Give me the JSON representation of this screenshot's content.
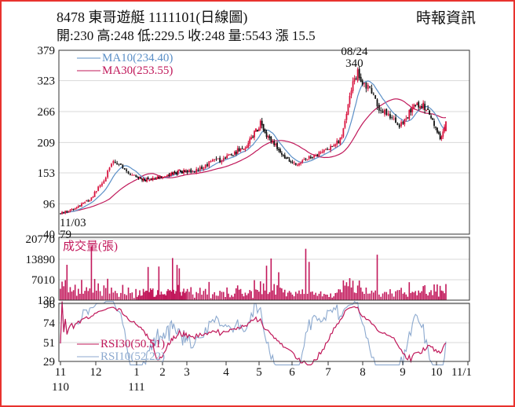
{
  "header": {
    "title": "8478  東哥遊艇 1111101(日線圖)",
    "source": "時報資訊",
    "ohlc": "開:230 高:248 低:229.5 收:248 量:5543 漲 15.5"
  },
  "colors": {
    "up": "#d8123e",
    "down": "#111111",
    "ma10": "#5b8fc7",
    "ma30": "#c0185a",
    "volume": "#c2185b",
    "rsi30": "#c0185a",
    "rsi10": "#8ca9cf",
    "frame": "#e8322e"
  },
  "chart_data": [
    {
      "type": "candlestick",
      "name": "price",
      "y_ticks": [
        40,
        96,
        153,
        209,
        266,
        323,
        379
      ],
      "ylim": [
        40,
        379
      ],
      "x_ticks": [
        "11",
        "12",
        "1",
        "2",
        "3",
        "4",
        "5",
        "6",
        "7",
        "8",
        "9",
        "10",
        "11/1"
      ],
      "x_year_labels": [
        "110",
        "111"
      ],
      "legend": [
        {
          "label": "MA10(234.40)",
          "color": "#5b8fc7"
        },
        {
          "label": "MA30(253.55)",
          "color": "#c0185a"
        }
      ],
      "annotations": [
        {
          "text": "08/24",
          "value": 340,
          "month_pos": 8.85
        },
        {
          "text": "340",
          "value": 340,
          "month_pos": 8.85
        },
        {
          "text": "11/03",
          "value": 79,
          "month_pos": 0.05
        },
        {
          "text": "79",
          "value": 79,
          "month_pos": 0.05
        }
      ],
      "series_anchors": [
        [
          0.0,
          79
        ],
        [
          0.3,
          84
        ],
        [
          0.6,
          95
        ],
        [
          0.9,
          108
        ],
        [
          1.2,
          140
        ],
        [
          1.4,
          173
        ],
        [
          1.6,
          165
        ],
        [
          1.9,
          148
        ],
        [
          2.2,
          142
        ],
        [
          2.5,
          140
        ],
        [
          2.8,
          144
        ],
        [
          3.1,
          148
        ],
        [
          3.4,
          152
        ],
        [
          3.7,
          156
        ],
        [
          4.0,
          156
        ],
        [
          4.3,
          158
        ],
        [
          4.6,
          174
        ],
        [
          4.9,
          178
        ],
        [
          5.2,
          188
        ],
        [
          5.6,
          202
        ],
        [
          5.9,
          230
        ],
        [
          6.05,
          244
        ],
        [
          6.3,
          215
        ],
        [
          6.6,
          196
        ],
        [
          6.9,
          175
        ],
        [
          7.2,
          170
        ],
        [
          7.5,
          182
        ],
        [
          7.8,
          192
        ],
        [
          8.1,
          200
        ],
        [
          8.4,
          218
        ],
        [
          8.6,
          288
        ],
        [
          8.75,
          325
        ],
        [
          8.85,
          338
        ],
        [
          9.0,
          320
        ],
        [
          9.2,
          310
        ],
        [
          9.4,
          272
        ],
        [
          9.7,
          258
        ],
        [
          9.9,
          240
        ],
        [
          10.1,
          252
        ],
        [
          10.35,
          282
        ],
        [
          10.6,
          278
        ],
        [
          10.8,
          262
        ],
        [
          10.95,
          238
        ],
        [
          11.1,
          218
        ],
        [
          11.2,
          226
        ],
        [
          11.3,
          248
        ]
      ]
    },
    {
      "type": "bar",
      "name": "volume",
      "legend": [
        {
          "label": "成交量(張)",
          "color": "#c2185b"
        }
      ],
      "y_ticks": [
        130,
        7010,
        13890,
        20770
      ],
      "ylim": [
        130,
        20770
      ]
    },
    {
      "type": "line",
      "name": "rsi",
      "y_ticks": [
        29,
        51,
        74,
        96
      ],
      "ylim": [
        29,
        96
      ],
      "legend": [
        {
          "label": "RSI30(50.51)",
          "color": "#c0185a"
        },
        {
          "label": "RSI10(52.22)",
          "color": "#8ca9cf"
        }
      ]
    }
  ]
}
